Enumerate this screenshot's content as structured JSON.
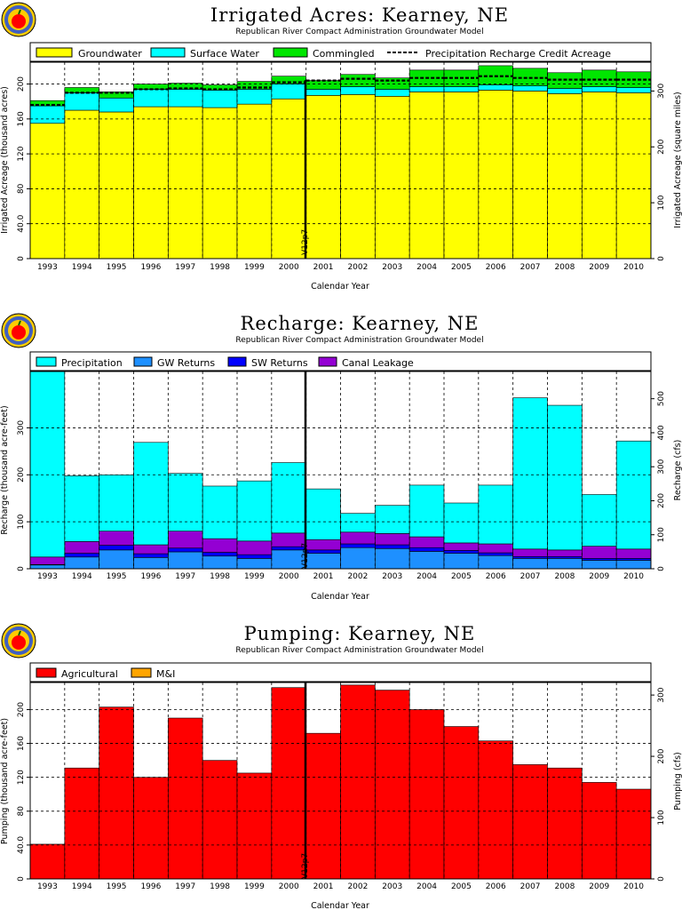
{
  "chart_data": [
    {
      "type": "bar",
      "stacked": true,
      "title": "Irrigated Acres: Kearney, NE",
      "subtitle": "Republican River Compact Administration Groundwater Model",
      "xlabel": "Calendar Year",
      "ylabel": "Irrigated Acreage (thousand acres)",
      "y2label": "Irrigated Acreage (square miles)",
      "ylim": [
        0,
        225
      ],
      "yticks": [
        0,
        40.0,
        80,
        120,
        160,
        200
      ],
      "ytick_labels": [
        "0",
        "40.0",
        "80",
        "120",
        "160",
        "200"
      ],
      "y2ticks": [
        0,
        100,
        200,
        300
      ],
      "y2_per_y": 1.5625,
      "categories": [
        "1993",
        "1994",
        "1995",
        "1996",
        "1997",
        "1998",
        "1999",
        "2000",
        "2001",
        "2002",
        "2003",
        "2004",
        "2005",
        "2006",
        "2007",
        "2008",
        "2009",
        "2010"
      ],
      "series": [
        {
          "name": "Groundwater",
          "color": "#ffff00",
          "values": [
            155,
            170,
            168,
            174,
            174,
            173,
            177,
            183,
            187,
            188,
            186,
            191,
            191,
            193,
            192,
            189,
            191,
            190
          ]
        },
        {
          "name": "Surface Water",
          "color": "#00ffff",
          "values": [
            20,
            20,
            16,
            20,
            20,
            20,
            17,
            17,
            7,
            9,
            8,
            6,
            6,
            6,
            6,
            6,
            6,
            6
          ]
        },
        {
          "name": "Commingled",
          "color": "#00e600",
          "values": [
            6,
            6,
            7,
            6,
            7,
            6,
            9,
            9,
            10,
            14,
            13,
            19,
            19,
            22,
            20,
            18,
            19,
            18
          ]
        }
      ],
      "reference_line": {
        "name": "Precipitation Recharge Credit Acreage",
        "style": "dashed",
        "values": [
          176,
          190,
          190,
          194,
          195,
          194,
          196,
          202,
          204,
          206,
          204,
          207,
          207,
          209,
          207,
          205,
          205,
          205
        ]
      },
      "annotation": {
        "text": "V12p7",
        "at_year": "2001",
        "position": "boundary-left"
      },
      "grid": true,
      "legend": "top"
    },
    {
      "type": "bar",
      "stacked": true,
      "title": "Recharge: Kearney, NE",
      "subtitle": "Republican River Compact Administration Groundwater Model",
      "xlabel": "Calendar Year",
      "ylabel": "Recharge (thousand acre-feet)",
      "y2label": "Recharge (cfs)",
      "ylim": [
        0,
        420
      ],
      "yticks": [
        0,
        100,
        200,
        300
      ],
      "ytick_labels": [
        "0",
        "100",
        "200",
        "300"
      ],
      "y2ticks": [
        0,
        100,
        200,
        300,
        400,
        500
      ],
      "y2_per_y": 1.3813,
      "categories": [
        "1993",
        "1994",
        "1995",
        "1996",
        "1997",
        "1998",
        "1999",
        "2000",
        "2001",
        "2002",
        "2003",
        "2004",
        "2005",
        "2006",
        "2007",
        "2008",
        "2009",
        "2010"
      ],
      "series": [
        {
          "name": "GW Returns",
          "color": "#1e90ff",
          "values": [
            8,
            25,
            40,
            24,
            36,
            27,
            22,
            40,
            33,
            45,
            43,
            37,
            33,
            28,
            22,
            22,
            18,
            18
          ]
        },
        {
          "name": "SW Returns",
          "color": "#0000ff",
          "values": [
            1,
            8,
            10,
            8,
            8,
            8,
            8,
            7,
            7,
            8,
            8,
            8,
            6,
            6,
            4,
            4,
            4,
            4
          ]
        },
        {
          "name": "Canal Leakage",
          "color": "#9400d3",
          "values": [
            16,
            25,
            30,
            19,
            36,
            29,
            29,
            29,
            22,
            25,
            24,
            23,
            16,
            19,
            16,
            14,
            26,
            20
          ]
        },
        {
          "name": "Precipitation",
          "color": "#00ffff",
          "values": [
            395,
            140,
            120,
            218,
            123,
            112,
            128,
            150,
            108,
            40,
            60,
            110,
            85,
            125,
            322,
            308,
            110,
            230
          ]
        }
      ],
      "annotation": {
        "text": "V12p7",
        "at_year": "2001",
        "position": "boundary-left"
      },
      "grid": true,
      "legend": "top"
    },
    {
      "type": "bar",
      "stacked": true,
      "title": "Pumping: Kearney, NE",
      "subtitle": "Republican River Compact Administration Groundwater Model",
      "xlabel": "Calendar Year",
      "ylabel": "Pumping (thousand acre-feet)",
      "y2label": "Pumping (cfs)",
      "ylim": [
        0,
        232
      ],
      "yticks": [
        0,
        40.0,
        80,
        120,
        160,
        200
      ],
      "ytick_labels": [
        "0",
        "40.0",
        "80",
        "120",
        "160",
        "200"
      ],
      "y2ticks": [
        0,
        100,
        200,
        300
      ],
      "y2_per_y": 1.3813,
      "categories": [
        "1993",
        "1994",
        "1995",
        "1996",
        "1997",
        "1998",
        "1999",
        "2000",
        "2001",
        "2002",
        "2003",
        "2004",
        "2005",
        "2006",
        "2007",
        "2008",
        "2009",
        "2010"
      ],
      "series": [
        {
          "name": "Agricultural",
          "color": "#ff0000",
          "values": [
            41,
            131,
            203,
            120,
            190,
            140,
            125,
            226,
            172,
            229,
            223,
            200,
            180,
            163,
            135,
            131,
            114,
            106
          ]
        },
        {
          "name": "M&I",
          "color": "#ffa500",
          "values": [
            0,
            0,
            0,
            0,
            0,
            0,
            0,
            0,
            0,
            0,
            0,
            0,
            0,
            0,
            0,
            0,
            0,
            0
          ]
        }
      ],
      "annotation": {
        "text": "V12p7",
        "at_year": "2001",
        "position": "boundary-left"
      },
      "grid": true,
      "legend": "top"
    }
  ]
}
